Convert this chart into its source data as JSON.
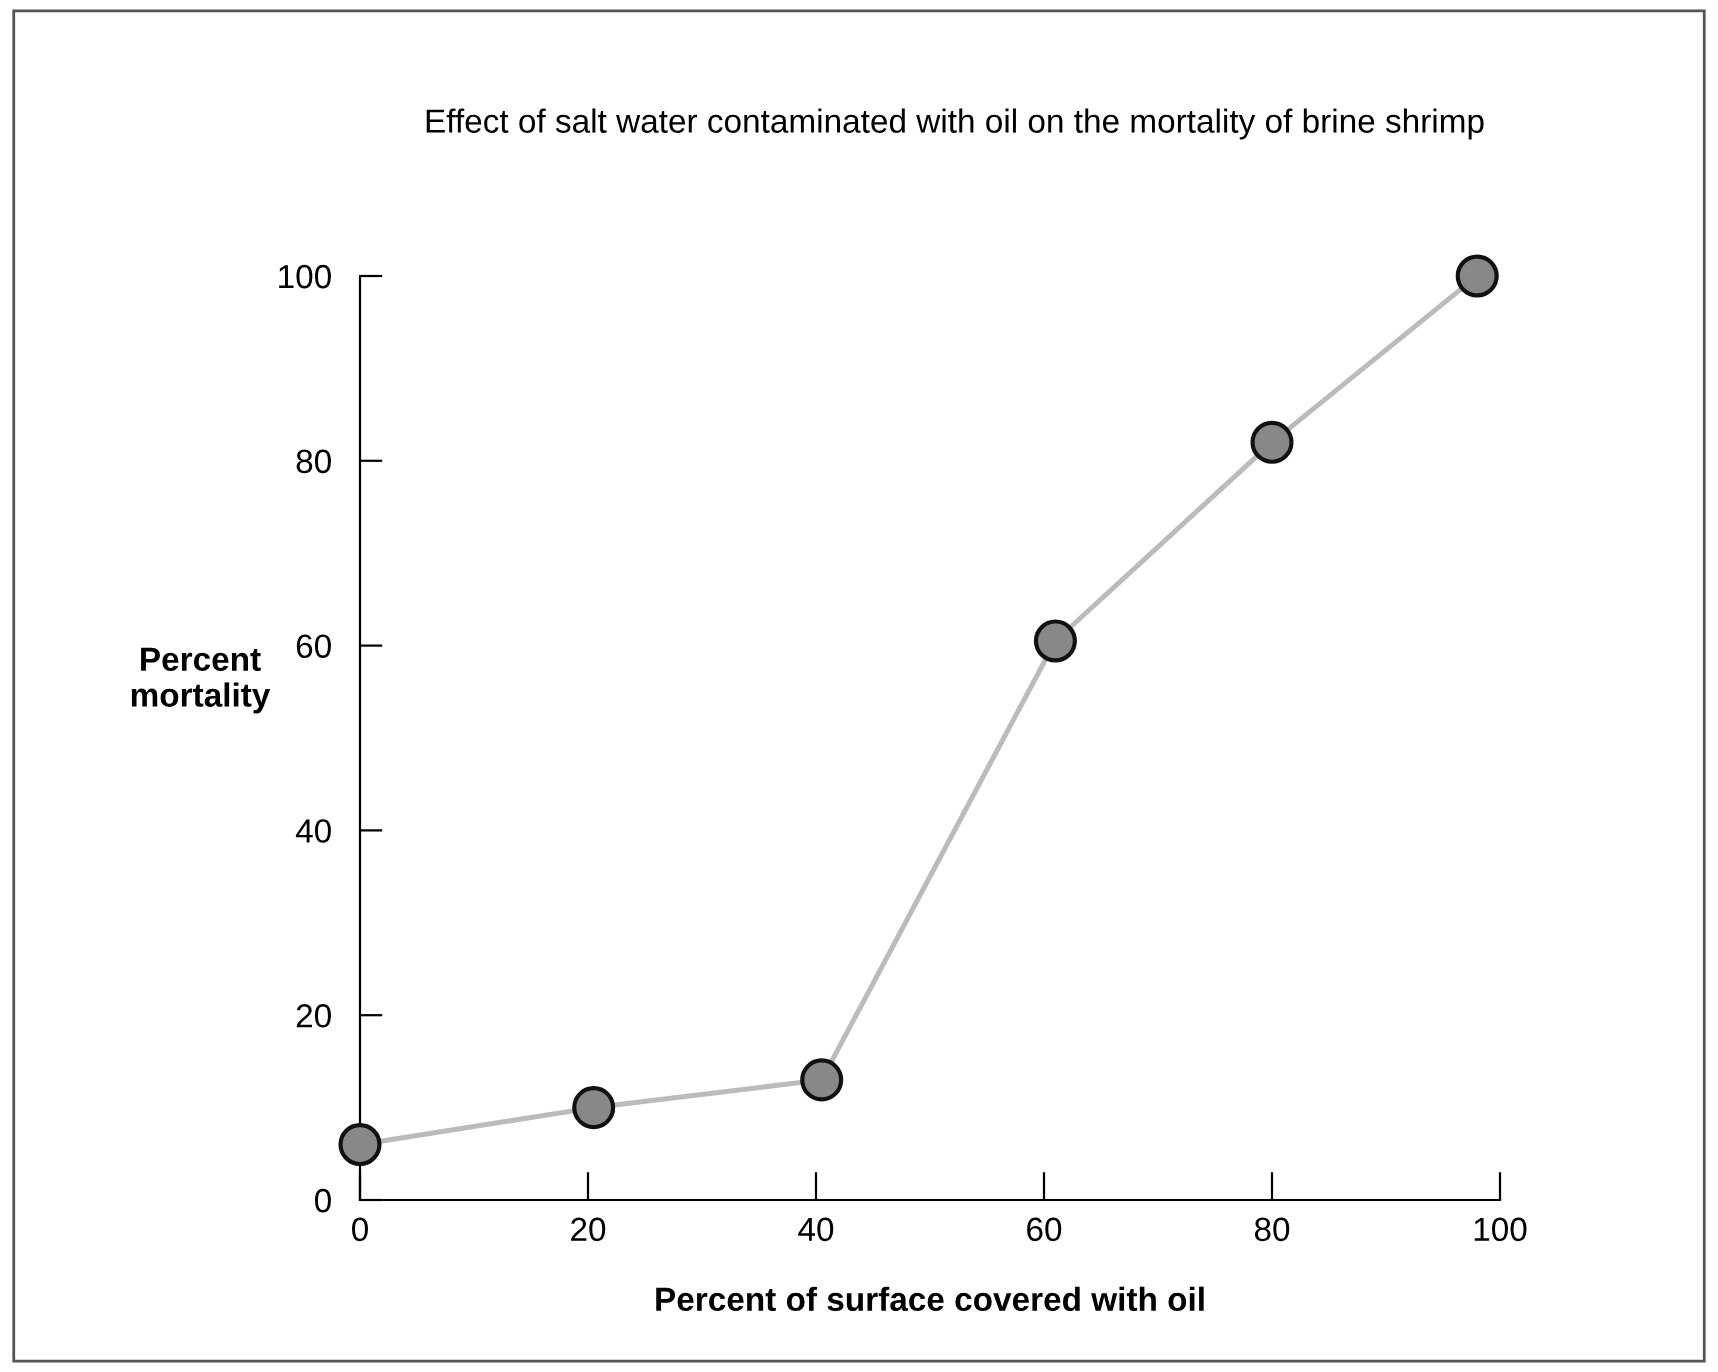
{
  "chart_data": {
    "type": "line",
    "title": "Effect of salt water contaminated with oil on the mortality of brine shrimp",
    "xlabel": "Percent of surface covered with oil",
    "ylabel": "Percent\nmortality",
    "x": [
      0,
      20.5,
      40.5,
      61,
      80,
      98
    ],
    "series": [
      {
        "color": "#bbbbbb",
        "values": [
          6,
          10,
          13,
          60.5,
          82,
          100
        ]
      }
    ],
    "xlim": [
      0,
      100
    ],
    "ylim": [
      0,
      100
    ],
    "xticks": [
      0,
      20,
      40,
      60,
      80,
      100
    ],
    "yticks": [
      0,
      20,
      40,
      60,
      80,
      100
    ],
    "marker": "circle",
    "line_style": "solid",
    "grid": false,
    "legend": false
  }
}
